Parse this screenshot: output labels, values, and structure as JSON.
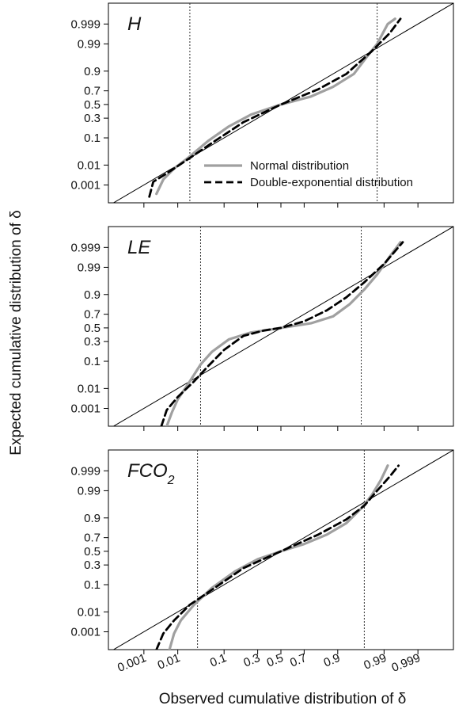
{
  "figure": {
    "xlabel": "Observed cumulative distribution of δ",
    "ylabel": "Expected cumulative distribution of δ"
  },
  "legend": {
    "placement": "panel-1 lower-right",
    "items": [
      {
        "label": "Normal distribution",
        "color": "#a0a0a0",
        "style": "solid"
      },
      {
        "label": "Double-exponential distribution",
        "color": "#000000",
        "style": "dashed"
      }
    ]
  },
  "chart_data": [
    {
      "type": "line",
      "panel_label": "H",
      "scale": "probit",
      "xlim": [
        5e-05,
        0.99995
      ],
      "ylim": [
        8e-05,
        0.99995
      ],
      "xticks": [
        "0.001",
        "0.01",
        "0.1",
        "0.3",
        "0.5",
        "0.7",
        "0.9",
        "0.99",
        "0.999"
      ],
      "yticks": [
        "0.001",
        "0.01",
        "0.1",
        "0.3",
        "0.5",
        "0.7",
        "0.9",
        "0.99",
        "0.999"
      ],
      "vlines": [
        0.02,
        0.985
      ],
      "series": [
        {
          "name": "Normal distribution",
          "color": "#a0a0a0",
          "dash": "solid",
          "points": [
            [
              0.0025,
              0.0003
            ],
            [
              0.004,
              0.002
            ],
            [
              0.008,
              0.007
            ],
            [
              0.018,
              0.02
            ],
            [
              0.05,
              0.08
            ],
            [
              0.12,
              0.2
            ],
            [
              0.25,
              0.35
            ],
            [
              0.5,
              0.5
            ],
            [
              0.75,
              0.62
            ],
            [
              0.88,
              0.75
            ],
            [
              0.95,
              0.88
            ],
            [
              0.975,
              0.97
            ],
            [
              0.985,
              0.99
            ],
            [
              0.992,
              0.999
            ],
            [
              0.995,
              0.9995
            ]
          ]
        },
        {
          "name": "Double-exponential distribution",
          "color": "#000000",
          "dash": "dashed",
          "points": [
            [
              0.0015,
              0.0002
            ],
            [
              0.002,
              0.0015
            ],
            [
              0.006,
              0.005
            ],
            [
              0.02,
              0.02
            ],
            [
              0.06,
              0.07
            ],
            [
              0.2,
              0.25
            ],
            [
              0.5,
              0.5
            ],
            [
              0.8,
              0.72
            ],
            [
              0.93,
              0.88
            ],
            [
              0.98,
              0.98
            ],
            [
              0.993,
              0.997
            ],
            [
              0.9965,
              0.9995
            ]
          ]
        }
      ]
    },
    {
      "type": "line",
      "panel_label": "LE",
      "scale": "probit",
      "xlim": [
        5e-05,
        0.99995
      ],
      "ylim": [
        8e-05,
        0.99995
      ],
      "xticks": [
        "0.001",
        "0.01",
        "0.1",
        "0.3",
        "0.5",
        "0.7",
        "0.9",
        "0.99",
        "0.999"
      ],
      "yticks": [
        "0.001",
        "0.01",
        "0.1",
        "0.3",
        "0.5",
        "0.7",
        "0.9",
        "0.99",
        "0.999"
      ],
      "vlines": [
        0.035,
        0.965
      ],
      "series": [
        {
          "name": "Normal distribution",
          "color": "#a0a0a0",
          "dash": "solid",
          "points": [
            [
              0.005,
              8e-05
            ],
            [
              0.007,
              0.0006
            ],
            [
              0.01,
              0.003
            ],
            [
              0.02,
              0.02
            ],
            [
              0.035,
              0.08
            ],
            [
              0.06,
              0.18
            ],
            [
              0.12,
              0.33
            ],
            [
              0.25,
              0.43
            ],
            [
              0.5,
              0.5
            ],
            [
              0.75,
              0.57
            ],
            [
              0.88,
              0.67
            ],
            [
              0.94,
              0.82
            ],
            [
              0.97,
              0.93
            ],
            [
              0.985,
              0.98
            ],
            [
              0.993,
              0.997
            ],
            [
              0.9965,
              0.9995
            ]
          ]
        },
        {
          "name": "Double-exponential distribution",
          "color": "#000000",
          "dash": "dashed",
          "points": [
            [
              0.0035,
              8e-05
            ],
            [
              0.005,
              0.0008
            ],
            [
              0.01,
              0.004
            ],
            [
              0.025,
              0.02
            ],
            [
              0.05,
              0.07
            ],
            [
              0.1,
              0.2
            ],
            [
              0.2,
              0.38
            ],
            [
              0.35,
              0.46
            ],
            [
              0.5,
              0.5
            ],
            [
              0.7,
              0.6
            ],
            [
              0.85,
              0.75
            ],
            [
              0.93,
              0.88
            ],
            [
              0.97,
              0.96
            ],
            [
              0.99,
              0.993
            ],
            [
              0.997,
              0.9995
            ]
          ]
        }
      ]
    },
    {
      "type": "line",
      "panel_label": "FCO2",
      "scale": "probit",
      "xlim": [
        5e-05,
        0.99995
      ],
      "ylim": [
        8e-05,
        0.99995
      ],
      "xticks": [
        "0.001",
        "0.01",
        "0.1",
        "0.3",
        "0.5",
        "0.7",
        "0.9",
        "0.99",
        "0.999"
      ],
      "yticks": [
        "0.001",
        "0.01",
        "0.1",
        "0.3",
        "0.5",
        "0.7",
        "0.9",
        "0.99",
        "0.999"
      ],
      "vlines": [
        0.03,
        0.97
      ],
      "series": [
        {
          "name": "Normal distribution",
          "color": "#a0a0a0",
          "dash": "solid",
          "points": [
            [
              0.006,
              8e-05
            ],
            [
              0.008,
              0.0008
            ],
            [
              0.012,
              0.004
            ],
            [
              0.025,
              0.02
            ],
            [
              0.06,
              0.08
            ],
            [
              0.15,
              0.22
            ],
            [
              0.3,
              0.38
            ],
            [
              0.5,
              0.5
            ],
            [
              0.7,
              0.61
            ],
            [
              0.85,
              0.74
            ],
            [
              0.93,
              0.86
            ],
            [
              0.965,
              0.95
            ],
            [
              0.98,
              0.985
            ],
            [
              0.988,
              0.997
            ],
            [
              0.992,
              0.9995
            ]
          ]
        },
        {
          "name": "Double-exponential distribution",
          "color": "#000000",
          "dash": "dashed",
          "points": [
            [
              0.0025,
              8e-05
            ],
            [
              0.004,
              0.0008
            ],
            [
              0.008,
              0.004
            ],
            [
              0.02,
              0.02
            ],
            [
              0.06,
              0.07
            ],
            [
              0.2,
              0.26
            ],
            [
              0.5,
              0.5
            ],
            [
              0.8,
              0.74
            ],
            [
              0.93,
              0.89
            ],
            [
              0.97,
              0.96
            ],
            [
              0.985,
              0.99
            ],
            [
              0.993,
              0.998
            ],
            [
              0.996,
              0.9995
            ]
          ]
        }
      ]
    }
  ]
}
